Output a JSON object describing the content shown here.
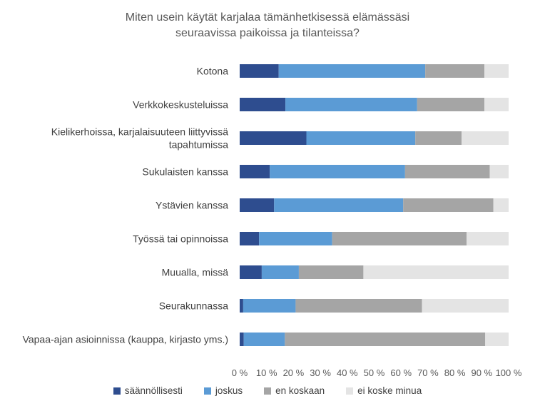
{
  "chart_data": {
    "type": "bar",
    "orientation": "horizontal",
    "stacked": true,
    "title_lines": [
      "Miten usein käytät karjalaa tämänhetkisessä elämässäsi",
      "seuraavissa paikoissa ja tilanteissa?"
    ],
    "categories": [
      [
        "Kotona"
      ],
      [
        "Verkkokeskusteluissa"
      ],
      [
        "Kielikerhoissa, karjalaisuuteen liittyvissä",
        "tapahtumissa"
      ],
      [
        "Sukulaisten kanssa"
      ],
      [
        "Ystävien kanssa"
      ],
      [
        "Työssä tai opinnoissa"
      ],
      [
        "Muualla, missä"
      ],
      [
        "Seurakunnassa"
      ],
      [
        "Vapaa-ajan asioinnissa (kauppa, kirjasto yms.)"
      ]
    ],
    "series": [
      {
        "name": "säännöllisesti",
        "color": "#2E4D8F",
        "values": [
          14.5,
          17,
          24.8,
          11.2,
          12.8,
          7.2,
          8.2,
          1.3,
          1.5
        ]
      },
      {
        "name": "joskus",
        "color": "#5B9BD5",
        "values": [
          54.5,
          49,
          40.5,
          50.3,
          48,
          27.2,
          13.8,
          19.5,
          15.3
        ]
      },
      {
        "name": "en koskaan",
        "color": "#A5A5A5",
        "values": [
          22,
          25,
          17.2,
          31.5,
          33.5,
          50,
          24,
          47,
          74.5
        ]
      },
      {
        "name": "ei koske minua",
        "color": "#E4E4E4",
        "values": [
          9,
          9,
          17.5,
          7,
          5.7,
          15.6,
          54,
          32.2,
          8.7
        ]
      }
    ],
    "x_ticks": [
      "0 %",
      "10 %",
      "20 %",
      "30 %",
      "40 %",
      "50 %",
      "60 %",
      "70 %",
      "80 %",
      "90 %",
      "100 %"
    ],
    "xlim": [
      0,
      100
    ],
    "grid": false,
    "legend_position": "bottom"
  }
}
